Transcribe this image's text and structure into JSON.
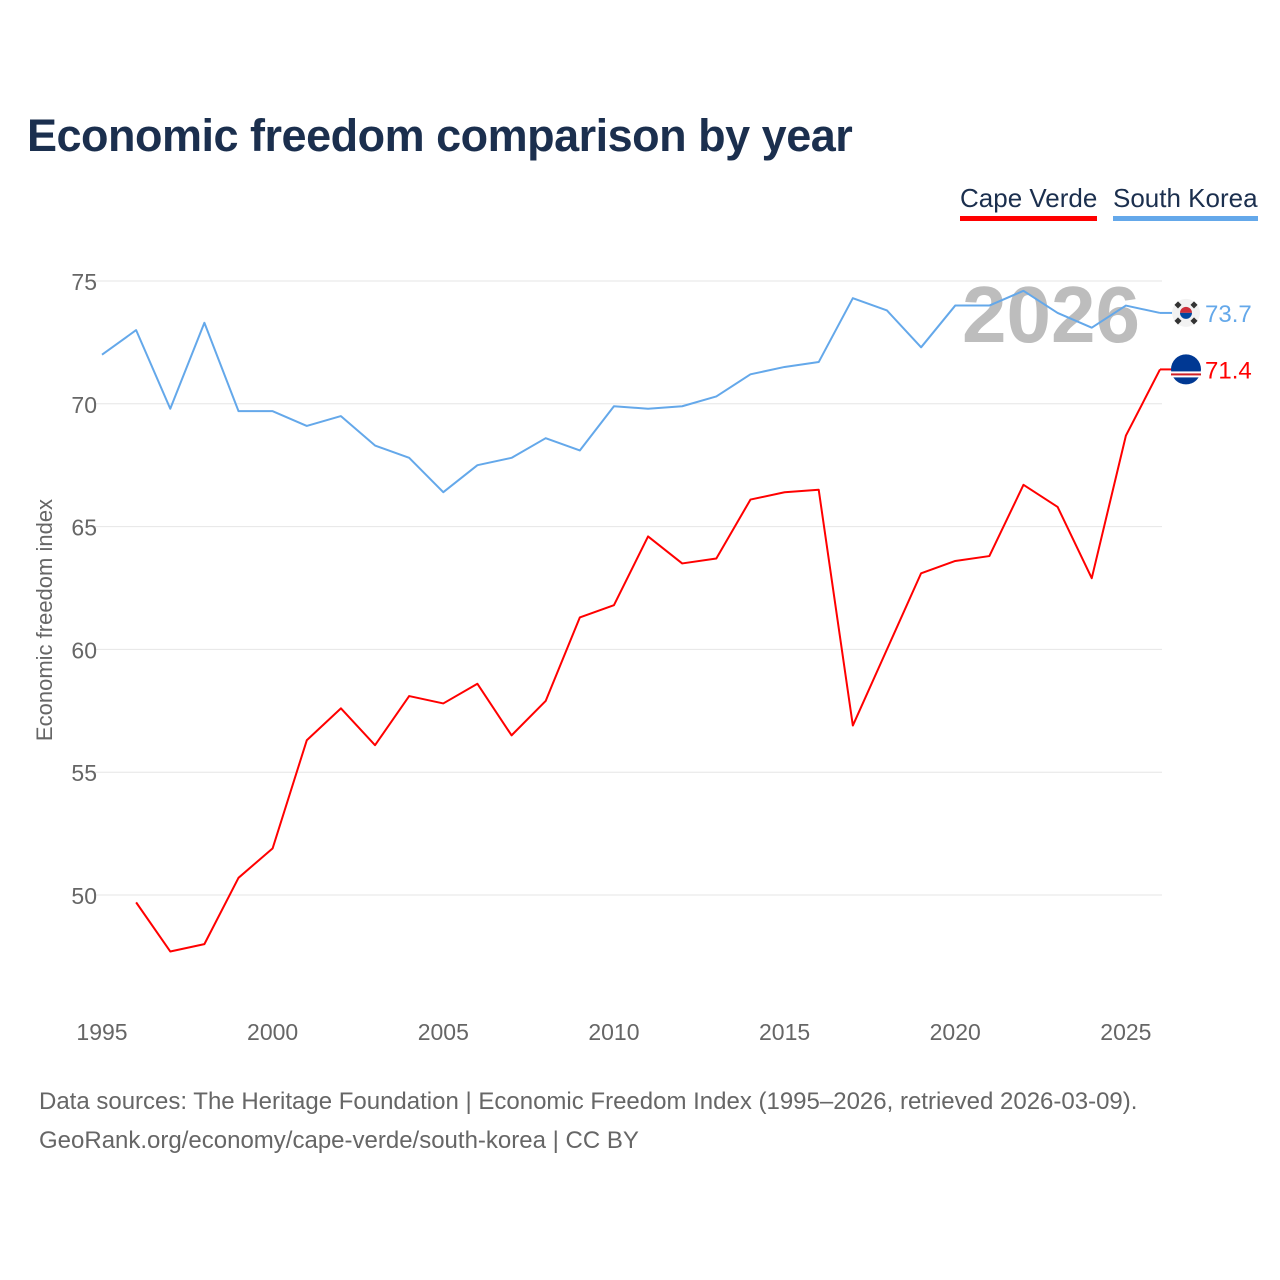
{
  "title": "Economic freedom comparison by year",
  "legend": [
    "Cape Verde",
    "South Korea"
  ],
  "footer": {
    "line1": "Data sources: The Heritage Foundation | Economic Freedom Index (1995–2026, retrieved 2026-03-09).",
    "line2": "GeoRank.org/economy/cape-verde/south-korea | CC BY"
  },
  "chart_data": {
    "type": "line",
    "title": "Economic freedom comparison by year",
    "xlabel": "",
    "ylabel": "Economic freedom index",
    "watermark_year": "2026",
    "xlim": [
      1995,
      2026
    ],
    "ylim": [
      45,
      77
    ],
    "xticks": [
      1995,
      2000,
      2005,
      2010,
      2015,
      2020,
      2025
    ],
    "yticks": [
      50,
      55,
      60,
      65,
      70,
      75
    ],
    "grid": true,
    "legend_position": "top-right",
    "series": [
      {
        "name": "Cape Verde",
        "color": "#ff0000",
        "end_label": "71.4",
        "flag": "cape-verde-flag",
        "x": [
          1996,
          1997,
          1998,
          1999,
          2000,
          2001,
          2002,
          2003,
          2004,
          2005,
          2006,
          2007,
          2008,
          2009,
          2010,
          2011,
          2012,
          2013,
          2014,
          2015,
          2016,
          2017,
          2018,
          2019,
          2020,
          2021,
          2022,
          2023,
          2024,
          2025,
          2026
        ],
        "values": [
          49.7,
          47.7,
          48.0,
          50.7,
          51.9,
          56.3,
          57.6,
          56.1,
          58.1,
          57.8,
          58.6,
          56.5,
          57.9,
          61.3,
          61.8,
          64.6,
          63.5,
          63.7,
          66.1,
          66.4,
          66.5,
          56.9,
          60.0,
          63.1,
          63.6,
          63.8,
          66.7,
          65.8,
          62.9,
          68.7,
          71.4
        ]
      },
      {
        "name": "South Korea",
        "color": "#64a8ea",
        "end_label": "73.7",
        "flag": "south-korea-flag",
        "x": [
          1995,
          1996,
          1997,
          1998,
          1999,
          2000,
          2001,
          2002,
          2003,
          2004,
          2005,
          2006,
          2007,
          2008,
          2009,
          2010,
          2011,
          2012,
          2013,
          2014,
          2015,
          2016,
          2017,
          2018,
          2019,
          2020,
          2021,
          2022,
          2023,
          2024,
          2025,
          2026
        ],
        "values": [
          72.0,
          73.0,
          69.8,
          73.3,
          69.7,
          69.7,
          69.1,
          69.5,
          68.3,
          67.8,
          66.4,
          67.5,
          67.8,
          68.6,
          68.1,
          69.9,
          69.8,
          69.9,
          70.3,
          71.2,
          71.5,
          71.7,
          74.3,
          73.8,
          72.3,
          74.0,
          74.0,
          74.6,
          73.7,
          73.1,
          74.0,
          73.7
        ]
      }
    ]
  }
}
